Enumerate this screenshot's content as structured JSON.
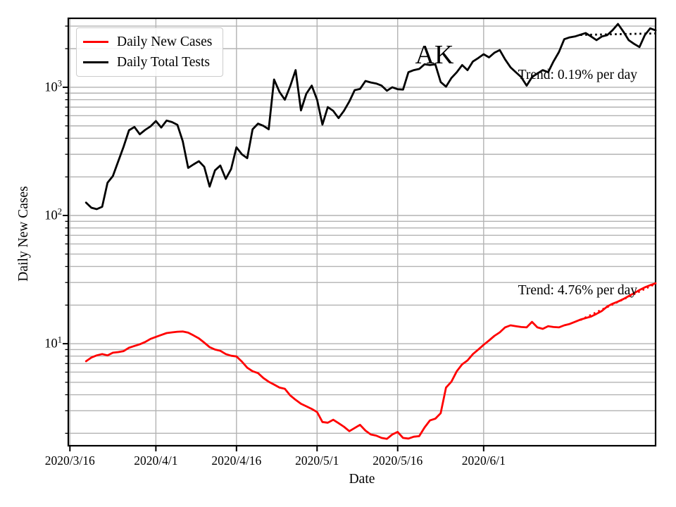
{
  "chart_data": {
    "type": "line",
    "title": "AK",
    "xlabel": "Date",
    "ylabel": "Daily New Cases",
    "yscale": "log",
    "ylim": [
      1.6,
      3450
    ],
    "xlim_days": [
      -0.3,
      109
    ],
    "x_day0_date": "2020/3/16",
    "grid": {
      "major": true,
      "minor": true,
      "color": "#b3b3b3"
    },
    "legend_position": "upper left",
    "x_ticks": [
      {
        "label": "2020/3/16",
        "day": 0
      },
      {
        "label": "2020/4/1",
        "day": 16
      },
      {
        "label": "2020/4/16",
        "day": 31
      },
      {
        "label": "2020/5/1",
        "day": 46
      },
      {
        "label": "2020/5/16",
        "day": 61
      },
      {
        "label": "2020/6/1",
        "day": 77
      }
    ],
    "y_ticks": [
      {
        "base": "10",
        "exp": "3",
        "value": 1000
      },
      {
        "base": "10",
        "exp": "2",
        "value": 100
      },
      {
        "base": "10",
        "exp": "1",
        "value": 10
      }
    ],
    "series": [
      {
        "name": "Daily New Cases",
        "color": "#ff0000",
        "x_day_start": 3,
        "values": [
          7.3,
          7.8,
          8.1,
          8.3,
          8.1,
          8.5,
          8.6,
          8.75,
          9.3,
          9.6,
          9.9,
          10.3,
          10.9,
          11.3,
          11.7,
          12.1,
          12.25,
          12.4,
          12.45,
          12.2,
          11.6,
          11.0,
          10.2,
          9.4,
          9.0,
          8.8,
          8.3,
          8.05,
          7.95,
          7.25,
          6.5,
          6.1,
          5.9,
          5.4,
          5.05,
          4.8,
          4.55,
          4.45,
          3.95,
          3.65,
          3.4,
          3.25,
          3.1,
          2.93,
          2.45,
          2.42,
          2.55,
          2.4,
          2.25,
          2.08,
          2.2,
          2.33,
          2.1,
          1.96,
          1.92,
          1.84,
          1.81,
          1.96,
          2.05,
          1.84,
          1.82,
          1.88,
          1.9,
          2.22,
          2.52,
          2.6,
          2.87,
          4.55,
          5.05,
          6.1,
          6.9,
          7.4,
          8.3,
          9.0,
          9.8,
          10.6,
          11.5,
          12.25,
          13.4,
          13.9,
          13.7,
          13.5,
          13.4,
          14.8,
          13.4,
          13.05,
          13.7,
          13.5,
          13.4,
          13.9,
          14.25,
          14.8,
          15.4,
          15.85,
          16.3,
          17.1,
          18.0,
          19.5,
          20.5,
          21.3,
          22.3,
          23.5,
          24.8,
          26.2,
          27.5,
          28.6,
          29.6
        ]
      },
      {
        "name": "Daily Total Tests",
        "color": "#000000",
        "x_day_start": 3,
        "values": [
          126,
          115,
          112,
          117,
          180,
          203,
          265,
          345,
          462,
          490,
          430,
          465,
          495,
          545,
          485,
          550,
          535,
          510,
          380,
          235,
          250,
          265,
          240,
          168,
          225,
          245,
          193,
          230,
          340,
          300,
          280,
          470,
          520,
          500,
          470,
          1150,
          920,
          800,
          1020,
          1360,
          660,
          890,
          1030,
          800,
          512,
          700,
          655,
          575,
          655,
          775,
          950,
          970,
          1120,
          1090,
          1070,
          1030,
          940,
          1000,
          965,
          960,
          1310,
          1360,
          1390,
          1510,
          1490,
          1510,
          1100,
          1010,
          1180,
          1310,
          1490,
          1360,
          1590,
          1690,
          1810,
          1710,
          1860,
          1950,
          1650,
          1430,
          1310,
          1200,
          1030,
          1200,
          1280,
          1360,
          1310,
          1590,
          1880,
          2370,
          2450,
          2490,
          2570,
          2650,
          2490,
          2330,
          2490,
          2550,
          2790,
          3120,
          2720,
          2330,
          2180,
          2060,
          2550,
          2880,
          2780
        ]
      }
    ],
    "trends": [
      {
        "label": "Trend: 0.19% per day",
        "series": "Daily Total Tests",
        "rate_pct_per_day": 0.19,
        "day_start": 95,
        "day_end": 109,
        "start_value": 2560,
        "color": "#000000"
      },
      {
        "label": "Trend: 4.76% per day",
        "series": "Daily New Cases",
        "rate_pct_per_day": 4.76,
        "day_start": 95,
        "day_end": 109,
        "start_value": 15.3,
        "color": "#ff0000"
      }
    ]
  }
}
